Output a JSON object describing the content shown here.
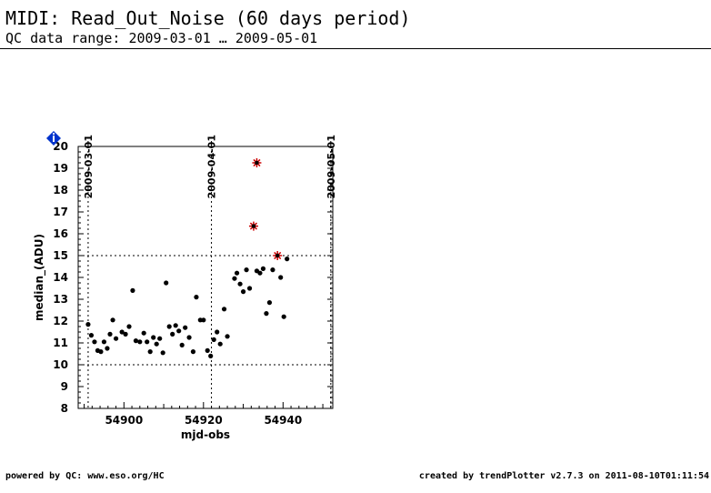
{
  "header": {
    "title": "MIDI: Read_Out_Noise (60 days period)",
    "subtitle": "QC data range: 2009-03-01 … 2009-05-01"
  },
  "footer": {
    "left": "powered by QC: www.eso.org/HC",
    "right": "created by trendPlotter v2.7.3 on 2011-08-10T01:11:54"
  },
  "colors": {
    "point": "#000000",
    "outlier": "#cc0000",
    "info_icon": "#0033cc"
  },
  "icons": {
    "info": "info-diamond-icon"
  },
  "chart_data": {
    "type": "scatter",
    "title": "",
    "xlabel": "mjd-obs",
    "ylabel": "median_(ADU)",
    "xlim": [
      54888.5,
      54952.5
    ],
    "ylim": [
      8,
      20
    ],
    "xticks": [
      54900,
      54920,
      54940
    ],
    "yticks": [
      8,
      9,
      10,
      11,
      12,
      13,
      14,
      15,
      16,
      17,
      18,
      19,
      20
    ],
    "date_markers": [
      {
        "label": "2009-03-01",
        "mjd": 54891
      },
      {
        "label": "2009-04-01",
        "mjd": 54922
      },
      {
        "label": "2009-05-01",
        "mjd": 54952
      }
    ],
    "threshold_lines": [
      10,
      15
    ],
    "points": [
      {
        "x": 54891.0,
        "y": 11.85
      },
      {
        "x": 54891.8,
        "y": 11.35
      },
      {
        "x": 54892.6,
        "y": 11.05
      },
      {
        "x": 54893.4,
        "y": 10.65
      },
      {
        "x": 54894.2,
        "y": 10.6
      },
      {
        "x": 54895.0,
        "y": 11.05
      },
      {
        "x": 54895.8,
        "y": 10.75
      },
      {
        "x": 54896.5,
        "y": 11.4
      },
      {
        "x": 54897.2,
        "y": 12.05
      },
      {
        "x": 54898.0,
        "y": 11.2
      },
      {
        "x": 54899.5,
        "y": 11.5
      },
      {
        "x": 54900.4,
        "y": 11.4
      },
      {
        "x": 54901.3,
        "y": 11.75
      },
      {
        "x": 54902.2,
        "y": 13.4
      },
      {
        "x": 54903.0,
        "y": 11.1
      },
      {
        "x": 54904.0,
        "y": 11.05
      },
      {
        "x": 54905.0,
        "y": 11.45
      },
      {
        "x": 54905.8,
        "y": 11.05
      },
      {
        "x": 54906.6,
        "y": 10.6
      },
      {
        "x": 54907.4,
        "y": 11.25
      },
      {
        "x": 54908.2,
        "y": 10.95
      },
      {
        "x": 54909.0,
        "y": 11.2
      },
      {
        "x": 54909.8,
        "y": 10.55
      },
      {
        "x": 54910.6,
        "y": 13.75
      },
      {
        "x": 54911.4,
        "y": 11.75
      },
      {
        "x": 54912.2,
        "y": 11.4
      },
      {
        "x": 54913.0,
        "y": 11.8
      },
      {
        "x": 54913.8,
        "y": 11.55
      },
      {
        "x": 54914.6,
        "y": 10.9
      },
      {
        "x": 54915.4,
        "y": 11.7
      },
      {
        "x": 54916.4,
        "y": 11.25
      },
      {
        "x": 54917.4,
        "y": 10.6
      },
      {
        "x": 54918.2,
        "y": 13.1
      },
      {
        "x": 54919.2,
        "y": 12.05
      },
      {
        "x": 54920.0,
        "y": 12.05
      },
      {
        "x": 54921.0,
        "y": 10.65
      },
      {
        "x": 54921.8,
        "y": 10.4
      },
      {
        "x": 54922.6,
        "y": 11.15
      },
      {
        "x": 54923.4,
        "y": 11.5
      },
      {
        "x": 54924.2,
        "y": 10.95
      },
      {
        "x": 54925.2,
        "y": 12.55
      },
      {
        "x": 54926.0,
        "y": 11.3
      },
      {
        "x": 54927.8,
        "y": 13.95
      },
      {
        "x": 54928.4,
        "y": 14.2
      },
      {
        "x": 54929.2,
        "y": 13.7
      },
      {
        "x": 54930.0,
        "y": 13.35
      },
      {
        "x": 54930.8,
        "y": 14.35
      },
      {
        "x": 54931.6,
        "y": 13.5
      },
      {
        "x": 54933.4,
        "y": 14.3
      },
      {
        "x": 54934.2,
        "y": 14.2
      },
      {
        "x": 54935.0,
        "y": 14.4
      },
      {
        "x": 54935.8,
        "y": 12.35
      },
      {
        "x": 54936.6,
        "y": 12.85
      },
      {
        "x": 54937.4,
        "y": 14.35
      },
      {
        "x": 54939.4,
        "y": 14.0
      },
      {
        "x": 54940.2,
        "y": 12.2
      },
      {
        "x": 54941.0,
        "y": 14.85
      }
    ],
    "outliers": [
      {
        "x": 54932.6,
        "y": 16.35
      },
      {
        "x": 54933.4,
        "y": 19.25
      },
      {
        "x": 54938.6,
        "y": 15.0
      }
    ]
  }
}
